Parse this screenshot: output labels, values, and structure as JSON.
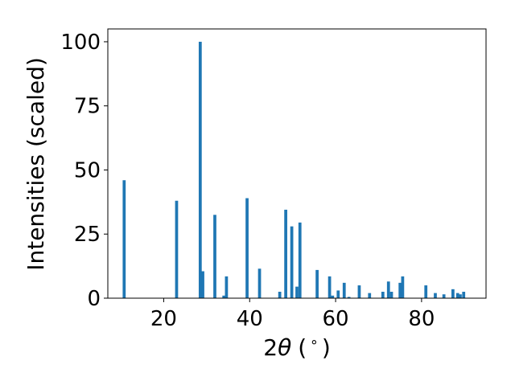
{
  "chart_data": {
    "type": "bar",
    "title": "",
    "xlabel_main": "2",
    "xlabel_theta": "θ",
    "xlabel_unit": "(",
    "xlabel_unit_sup": "∘",
    "xlabel_unit_close": ")",
    "ylabel": "Intensities (scaled)",
    "xlim": [
      7,
      95
    ],
    "ylim": [
      0,
      105
    ],
    "xticks": [
      20,
      40,
      60,
      80
    ],
    "yticks": [
      0,
      25,
      50,
      75,
      100
    ],
    "grid": false,
    "bar_color": "#1f77b4",
    "bar_width": 0.7,
    "x": [
      10.8,
      23.0,
      28.5,
      29.1,
      31.9,
      34.0,
      34.6,
      39.4,
      42.3,
      47.0,
      48.4,
      49.8,
      51.0,
      51.7,
      55.7,
      58.6,
      59.3,
      60.6,
      62.0,
      63.1,
      65.5,
      67.9,
      71.0,
      72.3,
      73.0,
      75.0,
      75.6,
      81.0,
      83.2,
      85.2,
      87.3,
      88.4,
      89.0,
      89.8
    ],
    "values": [
      46,
      38,
      100,
      10.5,
      32.5,
      1,
      8.5,
      39,
      11.5,
      2.5,
      34.5,
      28,
      4.5,
      29.5,
      11,
      8.5,
      1,
      3,
      6,
      0.5,
      5,
      2,
      2.5,
      6.5,
      2.5,
      6,
      8.5,
      5,
      2,
      1.5,
      3.5,
      2,
      1.5,
      2.5
    ]
  }
}
